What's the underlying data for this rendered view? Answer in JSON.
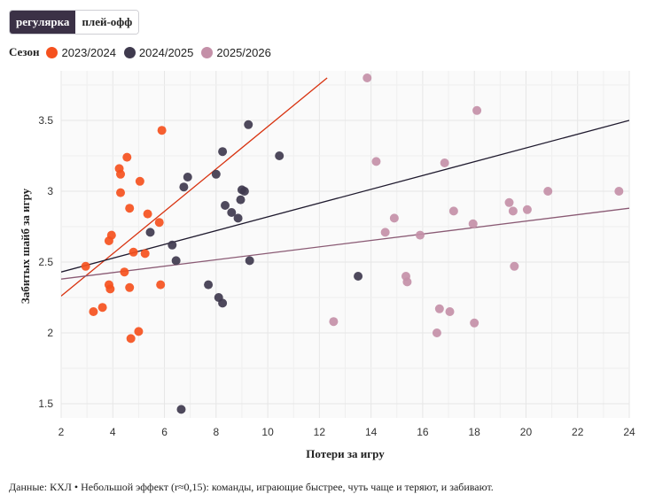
{
  "tabs": [
    {
      "label": "регулярка",
      "active": true
    },
    {
      "label": "плей-офф",
      "active": false
    }
  ],
  "legend": {
    "title": "Сезон",
    "items": [
      {
        "label": "2023/2024",
        "color": "#f5511e"
      },
      {
        "label": "2024/2025",
        "color": "#3f3a4e"
      },
      {
        "label": "2025/2026",
        "color": "#c490a8"
      }
    ]
  },
  "caption": "Данные: КХЛ • Небольшой эффект (r≈0,15): команды, играющие быстрее, чуть чаще и теряют, и забивают.",
  "chart_data": {
    "type": "scatter",
    "xlabel": "Потери за игру",
    "ylabel": "Забитых шайб за игру",
    "xlim": [
      2,
      24
    ],
    "ylim": [
      1.4,
      3.85
    ],
    "xticks": [
      2,
      4,
      6,
      8,
      10,
      12,
      14,
      16,
      18,
      20,
      22,
      24
    ],
    "xtick_labels": [
      "2",
      "4",
      "6",
      "8",
      "10",
      "12",
      "14",
      "16",
      "18",
      "20",
      "22",
      "24"
    ],
    "yticks": [
      1.5,
      2,
      2.5,
      3,
      3.5
    ],
    "ytick_labels": [
      "1.5",
      "2",
      "2.5",
      "3",
      "3.5"
    ],
    "grid": true,
    "series": [
      {
        "name": "2023/2024",
        "color": "#f5511e",
        "points": [
          [
            2.95,
            2.47
          ],
          [
            3.25,
            2.15
          ],
          [
            3.6,
            2.18
          ],
          [
            3.85,
            2.65
          ],
          [
            3.95,
            2.69
          ],
          [
            3.85,
            2.34
          ],
          [
            3.9,
            2.31
          ],
          [
            4.25,
            3.16
          ],
          [
            4.3,
            3.12
          ],
          [
            4.3,
            2.99
          ],
          [
            4.45,
            2.43
          ],
          [
            4.55,
            3.24
          ],
          [
            4.65,
            2.88
          ],
          [
            4.65,
            2.32
          ],
          [
            4.7,
            1.96
          ],
          [
            4.8,
            2.57
          ],
          [
            5.05,
            3.07
          ],
          [
            5.0,
            2.01
          ],
          [
            5.25,
            2.56
          ],
          [
            5.35,
            2.84
          ],
          [
            5.8,
            2.78
          ],
          [
            5.85,
            2.34
          ],
          [
            5.9,
            3.43
          ]
        ],
        "trend": [
          [
            2,
            2.26
          ],
          [
            12.3,
            3.8
          ]
        ]
      },
      {
        "name": "2024/2025",
        "color": "#3f3a4e",
        "points": [
          [
            5.45,
            2.71
          ],
          [
            6.3,
            2.62
          ],
          [
            6.45,
            2.51
          ],
          [
            6.65,
            1.46
          ],
          [
            6.75,
            3.03
          ],
          [
            6.9,
            3.1
          ],
          [
            7.7,
            2.34
          ],
          [
            8.0,
            3.12
          ],
          [
            8.1,
            2.25
          ],
          [
            8.25,
            2.21
          ],
          [
            8.25,
            3.28
          ],
          [
            8.35,
            2.9
          ],
          [
            8.6,
            2.85
          ],
          [
            8.85,
            2.81
          ],
          [
            8.95,
            2.94
          ],
          [
            9.0,
            3.01
          ],
          [
            9.1,
            3.0
          ],
          [
            9.25,
            3.47
          ],
          [
            9.3,
            2.51
          ],
          [
            10.45,
            3.25
          ],
          [
            13.5,
            2.4
          ]
        ],
        "trend": [
          [
            2,
            2.43
          ],
          [
            24,
            3.5
          ]
        ]
      },
      {
        "name": "2025/2026",
        "color": "#c490a8",
        "points": [
          [
            12.55,
            2.08
          ],
          [
            13.85,
            3.8
          ],
          [
            14.2,
            3.21
          ],
          [
            14.55,
            2.71
          ],
          [
            14.9,
            2.81
          ],
          [
            15.35,
            2.4
          ],
          [
            15.4,
            2.36
          ],
          [
            15.9,
            2.69
          ],
          [
            16.55,
            2.0
          ],
          [
            16.65,
            2.17
          ],
          [
            16.85,
            3.2
          ],
          [
            17.05,
            2.15
          ],
          [
            17.2,
            2.86
          ],
          [
            17.95,
            2.77
          ],
          [
            18.0,
            2.07
          ],
          [
            18.1,
            3.57
          ],
          [
            19.35,
            2.92
          ],
          [
            19.5,
            2.86
          ],
          [
            19.55,
            2.47
          ],
          [
            20.05,
            2.87
          ],
          [
            20.85,
            3.0
          ],
          [
            23.6,
            3.0
          ]
        ],
        "trend": [
          [
            2,
            2.38
          ],
          [
            24,
            2.88
          ]
        ]
      }
    ]
  }
}
